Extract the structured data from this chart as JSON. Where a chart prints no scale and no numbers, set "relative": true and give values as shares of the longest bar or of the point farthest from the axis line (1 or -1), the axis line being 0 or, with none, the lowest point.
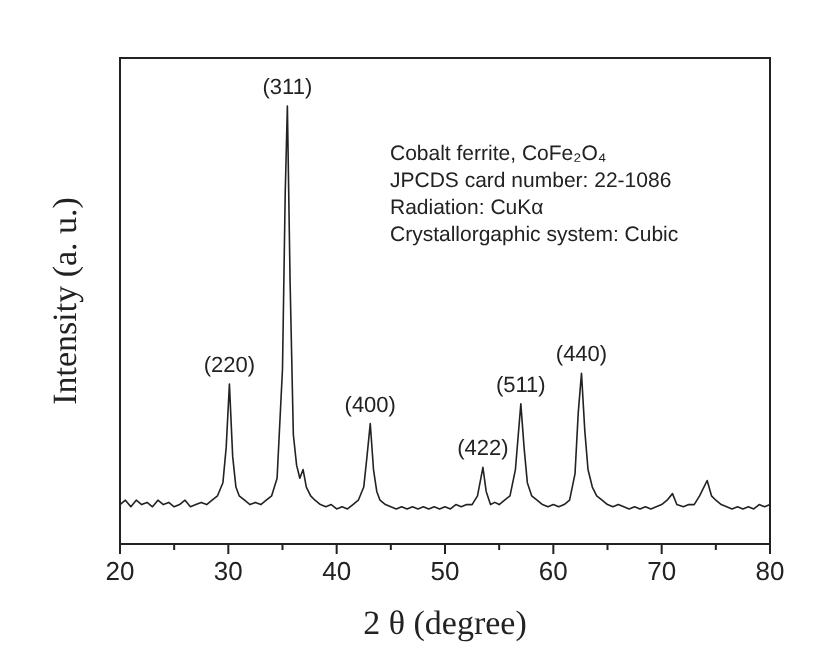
{
  "chart_data": {
    "type": "line",
    "relative": true,
    "xlabel": "2 θ (degree)",
    "ylabel": "Intensity (a. u.)",
    "xlim": [
      20,
      80
    ],
    "xticks": [
      20,
      {
        "value": 25,
        "label": null
      },
      30,
      {
        "value": 35,
        "label": null
      },
      40,
      {
        "value": 45,
        "label": null
      },
      50,
      {
        "value": 55,
        "label": null
      },
      60,
      {
        "value": 65,
        "label": null
      },
      70,
      {
        "value": 75,
        "label": null
      },
      80
    ],
    "grid": false,
    "marker": "none",
    "line_style": "solid",
    "series": [
      {
        "color": "#222222",
        "x": [
          20,
          20.5,
          21,
          21.5,
          22,
          22.5,
          23,
          23.5,
          24,
          24.5,
          25,
          25.5,
          26,
          26.5,
          27,
          27.5,
          28,
          28.5,
          29,
          29.5,
          29.8,
          30.1,
          30.4,
          30.7,
          31,
          31.5,
          32,
          32.5,
          33,
          33.5,
          34,
          34.5,
          35,
          35.25,
          35.45,
          35.7,
          36,
          36.3,
          36.6,
          36.9,
          37.2,
          37.6,
          38,
          38.5,
          39,
          39.5,
          40,
          40.5,
          41,
          41.5,
          42,
          42.5,
          42.8,
          43.1,
          43.4,
          43.7,
          44,
          44.5,
          45,
          45.5,
          46,
          46.5,
          47,
          47.5,
          48,
          48.5,
          49,
          49.5,
          50,
          50.5,
          51,
          51.5,
          52,
          52.5,
          53,
          53.5,
          53.8,
          54.2,
          54.6,
          55,
          55.5,
          56,
          56.5,
          57,
          57.3,
          57.6,
          58,
          58.5,
          59,
          59.5,
          60,
          60.5,
          61,
          61.5,
          62,
          62.3,
          62.6,
          62.9,
          63.2,
          63.6,
          64,
          64.5,
          65,
          65.5,
          66,
          66.5,
          67,
          67.5,
          68,
          68.5,
          69,
          69.5,
          70,
          70.5,
          71,
          71.4,
          72,
          72.5,
          73,
          73.5,
          74.2,
          74.6,
          75,
          75.5,
          76,
          76.5,
          77,
          77.5,
          78,
          78.5,
          79,
          79.5,
          80
        ],
        "values": [
          0.09,
          0.1,
          0.085,
          0.1,
          0.09,
          0.095,
          0.085,
          0.1,
          0.09,
          0.095,
          0.085,
          0.09,
          0.1,
          0.085,
          0.09,
          0.095,
          0.09,
          0.1,
          0.11,
          0.14,
          0.22,
          0.365,
          0.2,
          0.13,
          0.11,
          0.1,
          0.09,
          0.095,
          0.09,
          0.1,
          0.11,
          0.15,
          0.4,
          0.8,
          1,
          0.6,
          0.25,
          0.18,
          0.15,
          0.17,
          0.13,
          0.11,
          0.1,
          0.09,
          0.085,
          0.09,
          0.08,
          0.085,
          0.08,
          0.09,
          0.1,
          0.13,
          0.2,
          0.275,
          0.17,
          0.12,
          0.1,
          0.09,
          0.085,
          0.08,
          0.085,
          0.08,
          0.085,
          0.08,
          0.085,
          0.08,
          0.085,
          0.08,
          0.085,
          0.08,
          0.09,
          0.085,
          0.09,
          0.09,
          0.11,
          0.175,
          0.12,
          0.09,
          0.095,
          0.09,
          0.1,
          0.11,
          0.17,
          0.32,
          0.22,
          0.14,
          0.11,
          0.1,
          0.09,
          0.085,
          0.09,
          0.085,
          0.09,
          0.1,
          0.16,
          0.3,
          0.39,
          0.26,
          0.17,
          0.13,
          0.11,
          0.1,
          0.09,
          0.085,
          0.09,
          0.085,
          0.08,
          0.085,
          0.08,
          0.085,
          0.08,
          0.085,
          0.09,
          0.1,
          0.115,
          0.09,
          0.085,
          0.09,
          0.09,
          0.11,
          0.145,
          0.11,
          0.1,
          0.09,
          0.085,
          0.08,
          0.085,
          0.08,
          0.085,
          0.08,
          0.09,
          0.085,
          0.09
        ]
      }
    ],
    "annotations": [
      {
        "text": "(220)",
        "x": 30.1,
        "y": 0.365
      },
      {
        "text": "(311)",
        "x": 35.45,
        "y": 1
      },
      {
        "text": "(400)",
        "x": 43.1,
        "y": 0.275
      },
      {
        "text": "(422)",
        "x": 53.5,
        "y": 0.175
      },
      {
        "text": "(511)",
        "x": 57,
        "y": 0.32
      },
      {
        "text": "(440)",
        "x": 62.6,
        "y": 0.39
      },
      "Cobalt ferrite, CoFe₂O₄",
      "JPCDS card number: 22-1086",
      "Radiation: CuKα",
      "Crystallorgaphic system: Cubic"
    ]
  }
}
